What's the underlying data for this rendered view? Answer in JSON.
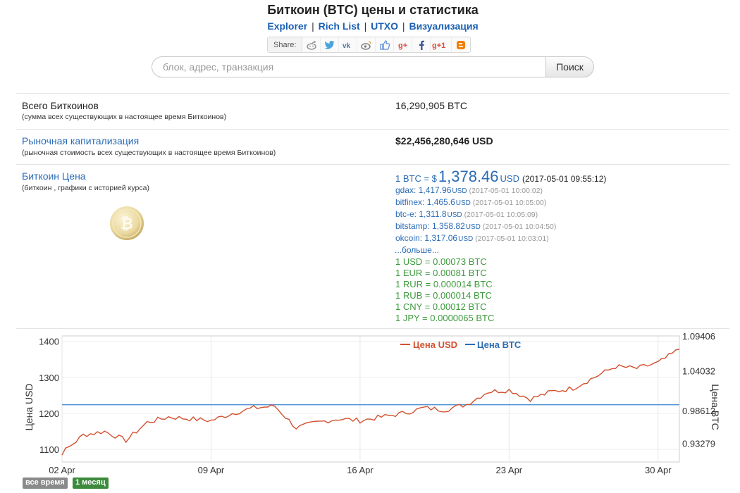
{
  "header": {
    "title": "Биткоин (BTC) цены и статистика",
    "links": [
      "Explorer",
      "Rich List",
      "UTXO",
      "Визуализация"
    ],
    "separator": "|",
    "share_label": "Share:",
    "share_icons": [
      "reddit-icon",
      "twitter-icon",
      "vk-icon",
      "weibo-icon",
      "like-icon",
      "google-plus-icon",
      "facebook-icon",
      "google-plus-one-icon",
      "blogger-icon"
    ]
  },
  "search": {
    "placeholder": "блок, адрес, транзакция",
    "button": "Поиск"
  },
  "stats": {
    "total": {
      "label": "Всего Биткоинов",
      "sub": "(сумма всех существующих в настоящее время Биткоинов)",
      "value": "16,290,905 BTC"
    },
    "cap": {
      "label": "Рыночная капитализация",
      "sub": "(рыночная стоимость всех существующих в настоящее время Биткоинов)",
      "value": "$22,456,280,646 USD"
    },
    "price": {
      "label": "Биткоин Цена",
      "sub": "(биткоин , графики с историей курса)"
    }
  },
  "price": {
    "prefix": "1 BTC = $",
    "value": "1,378.46",
    "currency": "USD",
    "timestamp": "(2017-05-01 09:55:12)",
    "exchanges": [
      {
        "name": "gdax:",
        "value": "1,417.96",
        "cur": "USD",
        "ts": "(2017-05-01 10:00:02)"
      },
      {
        "name": "bitfinex:",
        "value": "1,465.6",
        "cur": "USD",
        "ts": "(2017-05-01 10:05:00)"
      },
      {
        "name": "btc-e:",
        "value": "1,311.8",
        "cur": "USD",
        "ts": "(2017-05-01 10:05:09)"
      },
      {
        "name": "bitstamp:",
        "value": "1,358.82",
        "cur": "USD",
        "ts": "(2017-05-01 10:04:50)"
      },
      {
        "name": "okcoin:",
        "value": "1,317.06",
        "cur": "USD",
        "ts": "(2017-05-01 10:03:01)"
      }
    ],
    "more": "...больше...",
    "conversions": [
      "1 USD = 0.00073 BTC",
      "1 EUR = 0.00081 BTC",
      "1 RUR = 0.000014 BTC",
      "1 RUB = 0.000014 BTC",
      "1 CNY = 0.00012 BTC",
      "1 JPY = 0.0000065 BTC"
    ]
  },
  "range_buttons": {
    "all": "все время",
    "month": "1 месяц"
  },
  "colors": {
    "usd": "#d2502e",
    "btc": "#4a8fd4",
    "link": "#2a6bb5",
    "conv": "#3d9a3d"
  },
  "chart_data": {
    "type": "line",
    "ylabel_left": "Цена USD",
    "ylabel_right": "Цена BTC",
    "legend": "top-center",
    "grid": true,
    "x_ticks": [
      "02 Apr",
      "09 Apr",
      "16 Apr",
      "23 Apr",
      "30 Apr"
    ],
    "x_range": [
      "2017-04-02",
      "2017-05-01"
    ],
    "y_left_ticks": [
      1100,
      1200,
      1300,
      1400
    ],
    "y_left_range": [
      1065,
      1415
    ],
    "y_right_ticks": [
      "0.93279",
      "0.98612",
      "1.04032",
      "1.09406"
    ],
    "series": [
      {
        "name": "Цена USD",
        "axis": "left",
        "x": [
          "2017-04-01",
          "2017-04-02",
          "2017-04-03",
          "2017-04-04",
          "2017-04-05",
          "2017-04-06",
          "2017-04-07",
          "2017-04-08",
          "2017-04-09",
          "2017-04-10",
          "2017-04-11",
          "2017-04-12",
          "2017-04-13",
          "2017-04-14",
          "2017-04-15",
          "2017-04-16",
          "2017-04-17",
          "2017-04-18",
          "2017-04-19",
          "2017-04-20",
          "2017-04-21",
          "2017-04-22",
          "2017-04-23",
          "2017-04-24",
          "2017-04-25",
          "2017-04-26",
          "2017-04-27",
          "2017-04-28",
          "2017-04-29",
          "2017-04-30",
          "2017-05-01"
        ],
        "values": [
          1080,
          1090,
          1140,
          1150,
          1125,
          1175,
          1190,
          1185,
          1180,
          1200,
          1215,
          1220,
          1160,
          1175,
          1185,
          1180,
          1190,
          1200,
          1215,
          1210,
          1225,
          1260,
          1265,
          1240,
          1260,
          1270,
          1300,
          1330,
          1325,
          1340,
          1378
        ]
      },
      {
        "name": "Цена BTC",
        "axis": "right",
        "x": [
          "2017-04-01",
          "2017-05-01"
        ],
        "values": [
          1,
          1
        ]
      }
    ]
  }
}
